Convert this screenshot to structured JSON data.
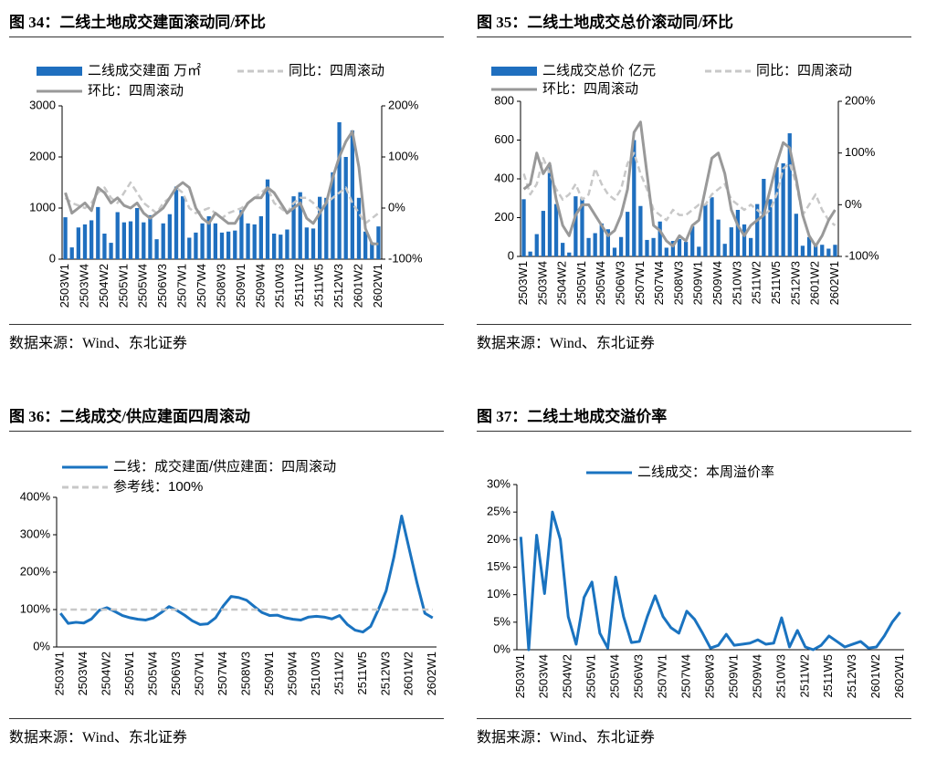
{
  "chart_data": [
    {
      "type": "bar",
      "title": "图 34：二线土地成交建面滚动同/环比",
      "source": "数据来源：Wind、东北证券",
      "categories": [
        "2503W1",
        null,
        null,
        "2503W4",
        null,
        null,
        "2504W2",
        null,
        null,
        "2505W1",
        null,
        null,
        "2505W4",
        null,
        null,
        "2506W3",
        null,
        null,
        "2507W1",
        null,
        null,
        "2507W4",
        null,
        null,
        "2508W3",
        null,
        null,
        "2509W1",
        null,
        null,
        "2509W4",
        null,
        null,
        "2510W3",
        null,
        null,
        "2511W2",
        null,
        null,
        "2511W5",
        null,
        null,
        "2512W3",
        null,
        null,
        "2601W2",
        null,
        null,
        "2602W1"
      ],
      "series": [
        {
          "name": "二线成交建面 万㎡",
          "type": "bar",
          "color": "#1f6fbf",
          "values": [
            820,
            230,
            620,
            680,
            760,
            1020,
            500,
            320,
            920,
            720,
            740,
            1000,
            720,
            860,
            390,
            700,
            880,
            1420,
            1230,
            420,
            520,
            700,
            840,
            700,
            520,
            540,
            560,
            960,
            700,
            680,
            840,
            1560,
            500,
            480,
            580,
            1230,
            1310,
            620,
            600,
            1220,
            1200,
            1700,
            2680,
            2000,
            2520,
            1200,
            540,
            330,
            640
          ]
        },
        {
          "name": "同比：四周滚动",
          "type": "line",
          "dashed": true,
          "axis": "y2",
          "color": "#c8c8c8",
          "values": [
            20,
            10,
            5,
            0,
            10,
            30,
            40,
            20,
            10,
            30,
            50,
            30,
            10,
            0,
            -10,
            10,
            20,
            40,
            30,
            0,
            -10,
            -5,
            0,
            -10,
            -20,
            -10,
            -5,
            0,
            10,
            20,
            30,
            40,
            10,
            0,
            -10,
            10,
            20,
            20,
            10,
            -5,
            10,
            20,
            30,
            40,
            10,
            -10,
            -30,
            -20,
            -10
          ]
        },
        {
          "name": "环比：四周滚动",
          "type": "line",
          "axis": "y2",
          "color": "#999999",
          "values": [
            30,
            -10,
            0,
            10,
            -5,
            40,
            30,
            10,
            20,
            5,
            0,
            10,
            -10,
            -20,
            -10,
            0,
            20,
            40,
            50,
            40,
            0,
            -20,
            -30,
            -10,
            -20,
            -30,
            -30,
            -10,
            10,
            20,
            20,
            40,
            30,
            10,
            -10,
            0,
            10,
            -20,
            -30,
            -10,
            10,
            60,
            100,
            130,
            150,
            80,
            -40,
            -70,
            -70
          ]
        }
      ],
      "ylim": [
        0,
        3000
      ],
      "yticks": [
        0,
        1000,
        2000,
        3000
      ],
      "y2lim": [
        -100,
        200
      ],
      "y2ticks": [
        {
          "value": -100,
          "label": "-100%"
        },
        {
          "value": 0,
          "label": "0%"
        },
        {
          "value": 100,
          "label": "100%"
        },
        {
          "value": 200,
          "label": "200%"
        }
      ]
    },
    {
      "type": "bar",
      "title": "图 35：二线土地成交总价滚动同/环比",
      "source": "数据来源：Wind、东北证券",
      "categories": [
        "2503W1",
        null,
        null,
        "2503W4",
        null,
        null,
        "2504W2",
        null,
        null,
        "2505W1",
        null,
        null,
        "2505W4",
        null,
        null,
        "2506W3",
        null,
        null,
        "2507W1",
        null,
        null,
        "2507W4",
        null,
        null,
        "2508W3",
        null,
        null,
        "2509W1",
        null,
        null,
        "2509W4",
        null,
        null,
        "2510W3",
        null,
        null,
        "2511W2",
        null,
        null,
        "2511W5",
        null,
        null,
        "2512W3",
        null,
        null,
        "2601W2",
        null,
        null,
        "2602W1"
      ],
      "series": [
        {
          "name": "二线成交总价 亿元",
          "type": "bar",
          "color": "#1f6fbf",
          "values": [
            295,
            25,
            115,
            235,
            470,
            270,
            70,
            20,
            310,
            300,
            95,
            120,
            170,
            140,
            45,
            100,
            230,
            600,
            260,
            85,
            95,
            180,
            45,
            80,
            90,
            75,
            155,
            50,
            270,
            305,
            190,
            65,
            150,
            240,
            165,
            95,
            270,
            400,
            295,
            460,
            480,
            635,
            220,
            55,
            100,
            55,
            60,
            40,
            60
          ]
        },
        {
          "name": "同比：四周滚动",
          "type": "line",
          "dashed": true,
          "axis": "y2",
          "color": "#c8c8c8",
          "values": [
            60,
            20,
            40,
            90,
            60,
            30,
            10,
            20,
            40,
            10,
            20,
            70,
            40,
            20,
            10,
            30,
            80,
            100,
            60,
            30,
            -10,
            -20,
            -30,
            -10,
            -20,
            -20,
            -10,
            0,
            0,
            20,
            30,
            40,
            10,
            0,
            -10,
            0,
            -10,
            -20,
            -10,
            20,
            70,
            80,
            40,
            -20,
            0,
            20,
            -10,
            -30,
            -40
          ]
        },
        {
          "name": "环比：四周滚动",
          "type": "line",
          "axis": "y2",
          "color": "#999999",
          "values": [
            30,
            40,
            100,
            60,
            80,
            10,
            -40,
            -60,
            -20,
            0,
            0,
            -20,
            -40,
            -60,
            -50,
            -20,
            30,
            140,
            160,
            60,
            -40,
            -50,
            -70,
            -80,
            -60,
            -70,
            -40,
            -30,
            30,
            90,
            100,
            60,
            -10,
            -40,
            -60,
            -40,
            -30,
            -20,
            30,
            80,
            120,
            110,
            50,
            -20,
            -60,
            -80,
            -60,
            -30,
            -10
          ]
        }
      ],
      "ylim": [
        0,
        800
      ],
      "yticks": [
        0,
        200,
        400,
        600,
        800
      ],
      "y2lim": [
        -100,
        200
      ],
      "y2ticks": [
        {
          "value": -100,
          "label": "-100%"
        },
        {
          "value": 0,
          "label": "0%"
        },
        {
          "value": 100,
          "label": "100%"
        },
        {
          "value": 200,
          "label": "200%"
        }
      ]
    },
    {
      "type": "line",
      "title": "图 36：二线成交/供应建面四周滚动",
      "source": "数据来源：Wind、东北证券",
      "categories": [
        "2503W1",
        null,
        null,
        "2503W4",
        null,
        null,
        "2504W2",
        null,
        null,
        "2505W1",
        null,
        null,
        "2505W4",
        null,
        null,
        "2506W3",
        null,
        null,
        "2507W1",
        null,
        null,
        "2507W4",
        null,
        null,
        "2508W3",
        null,
        null,
        "2509W1",
        null,
        null,
        "2509W4",
        null,
        null,
        "2510W3",
        null,
        null,
        "2511W2",
        null,
        null,
        "2511W5",
        null,
        null,
        "2512W3",
        null,
        null,
        "2601W2",
        null,
        null,
        "2602W1"
      ],
      "series": [
        {
          "name": "二线：成交建面/供应建面：四周滚动",
          "type": "line",
          "color": "#1a73c0",
          "values": [
            90,
            63,
            66,
            64,
            75,
            98,
            105,
            95,
            84,
            78,
            74,
            72,
            78,
            92,
            108,
            98,
            85,
            70,
            60,
            62,
            78,
            110,
            135,
            132,
            125,
            108,
            92,
            84,
            85,
            78,
            74,
            72,
            80,
            82,
            80,
            75,
            84,
            60,
            45,
            40,
            55,
            100,
            150,
            240,
            350,
            260,
            170,
            90,
            78
          ]
        },
        {
          "name": "参考线：100%",
          "type": "line",
          "dashed": true,
          "color": "#c8c8c8",
          "values": [
            100,
            100,
            100,
            100,
            100,
            100,
            100,
            100,
            100,
            100,
            100,
            100,
            100,
            100,
            100,
            100,
            100,
            100,
            100,
            100,
            100,
            100,
            100,
            100,
            100,
            100,
            100,
            100,
            100,
            100,
            100,
            100,
            100,
            100,
            100,
            100,
            100,
            100,
            100,
            100,
            100,
            100,
            100,
            100,
            100,
            100,
            100,
            100,
            100
          ]
        }
      ],
      "ylim": [
        0,
        400
      ],
      "yticks": [
        {
          "value": 0,
          "label": "0%"
        },
        {
          "value": 100,
          "label": "100%"
        },
        {
          "value": 200,
          "label": "200%"
        },
        {
          "value": 300,
          "label": "300%"
        },
        {
          "value": 400,
          "label": "400%"
        }
      ]
    },
    {
      "type": "line",
      "title": "图 37：二线土地成交溢价率",
      "source": "数据来源：Wind、东北证券",
      "categories": [
        "2503W1",
        null,
        null,
        "2503W4",
        null,
        null,
        "2504W2",
        null,
        null,
        "2505W1",
        null,
        null,
        "2505W4",
        null,
        null,
        "2506W3",
        null,
        null,
        "2507W1",
        null,
        null,
        "2507W4",
        null,
        null,
        "2508W3",
        null,
        null,
        "2509W1",
        null,
        null,
        "2509W4",
        null,
        null,
        "2510W3",
        null,
        null,
        "2511W2",
        null,
        null,
        "2511W5",
        null,
        null,
        "2512W3",
        null,
        null,
        "2601W2",
        null,
        null,
        "2602W1"
      ],
      "series": [
        {
          "name": "二线成交：本周溢价率",
          "type": "line",
          "color": "#1a73c0",
          "values": [
            20.5,
            0,
            20.8,
            10.2,
            25,
            20,
            6,
            1,
            9.5,
            12.3,
            3,
            0.3,
            13.2,
            6,
            1.3,
            1.5,
            6,
            9.8,
            6,
            4,
            3,
            7,
            5.5,
            3,
            0.3,
            0.8,
            2.8,
            0.8,
            1,
            1.2,
            1.8,
            1,
            1.2,
            5.8,
            0.5,
            3.5,
            0.5,
            0,
            0.8,
            2.5,
            1.5,
            0.5,
            1,
            1.5,
            0.3,
            0.5,
            2.5,
            5,
            6.8
          ]
        }
      ],
      "ylim": [
        0,
        30
      ],
      "yticks": [
        {
          "value": 0,
          "label": "0%"
        },
        {
          "value": 5,
          "label": "5%"
        },
        {
          "value": 10,
          "label": "10%"
        },
        {
          "value": 15,
          "label": "15%"
        },
        {
          "value": 20,
          "label": "20%"
        },
        {
          "value": 25,
          "label": "25%"
        },
        {
          "value": 30,
          "label": "30%"
        }
      ]
    }
  ]
}
